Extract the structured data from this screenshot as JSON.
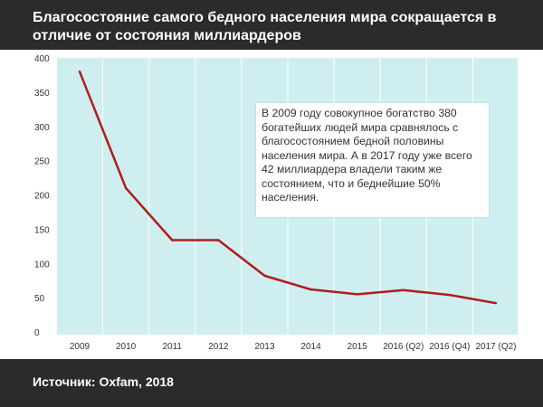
{
  "title": "Благосостояние самого бедного населения мира сокращается в отличие от состояния миллиардеров",
  "source": "Источник: Oxfam, 2018",
  "colors": {
    "plot_background": "#cfeef0",
    "line": "#b01c1c",
    "grid": "#ffffff",
    "band": "#2b2b2b"
  },
  "chart_data": {
    "type": "line",
    "categories": [
      "2009",
      "2010",
      "2011",
      "2012",
      "2013",
      "2014",
      "2015",
      "2016 (Q2)",
      "2016 (Q4)",
      "2017 (Q2)"
    ],
    "series": [
      {
        "values": [
          380,
          210,
          134,
          134,
          82,
          62,
          55,
          61,
          54,
          42
        ]
      }
    ],
    "yticks": [
      "400",
      "350",
      "300",
      "250",
      "200",
      "150",
      "100",
      "50",
      "0"
    ],
    "ylim": [
      0,
      400
    ],
    "grid": true,
    "annotation": "В 2009 году совокупное богатство 380 богатейших людей мира сравнялось с благосостоянием бедной половины населения мира. А в 2017 году уже всего 42 миллиардера владели таким же состоянием, что и беднейшие 50% населения."
  }
}
